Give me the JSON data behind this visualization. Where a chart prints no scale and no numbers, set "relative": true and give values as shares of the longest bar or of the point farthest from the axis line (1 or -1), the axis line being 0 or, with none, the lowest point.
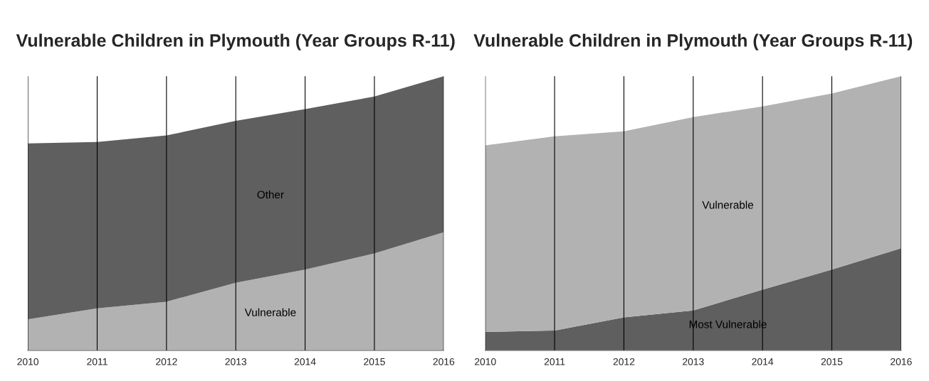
{
  "chart_data": [
    {
      "type": "area",
      "title": "Vulnerable Children in Plymouth (Year Groups R-11)",
      "x": [
        2010,
        2011,
        2012,
        2013,
        2014,
        2015,
        2016
      ],
      "relative": true,
      "stacked": true,
      "grid": "x",
      "xlim": [
        2010,
        2016
      ],
      "xticks": [
        2010,
        2011,
        2012,
        2013,
        2014,
        2015,
        2016
      ],
      "series": [
        {
          "name": "Vulnerable",
          "color": "#b2b2b2",
          "values": [
            0.114,
            0.154,
            0.178,
            0.247,
            0.295,
            0.354,
            0.431
          ]
        },
        {
          "name": "Other",
          "color": "#5f5f5f",
          "values": [
            0.641,
            0.606,
            0.606,
            0.59,
            0.585,
            0.572,
            0.569
          ]
        }
      ]
    },
    {
      "type": "area",
      "title": "Vulnerable Children in Plymouth (Year Groups R-11)",
      "x": [
        2010,
        2011,
        2012,
        2013,
        2014,
        2015,
        2016
      ],
      "relative": true,
      "stacked": true,
      "grid": "x",
      "xlim": [
        2010,
        2016
      ],
      "xticks": [
        2010,
        2011,
        2012,
        2013,
        2014,
        2015,
        2016
      ],
      "series": [
        {
          "name": "Most Vulnerable",
          "color": "#5f5f5f",
          "values": [
            0.068,
            0.073,
            0.121,
            0.146,
            0.222,
            0.295,
            0.373
          ]
        },
        {
          "name": "Vulnerable",
          "color": "#b2b2b2",
          "values": [
            0.68,
            0.708,
            0.678,
            0.705,
            0.668,
            0.642,
            0.627
          ]
        }
      ]
    }
  ]
}
